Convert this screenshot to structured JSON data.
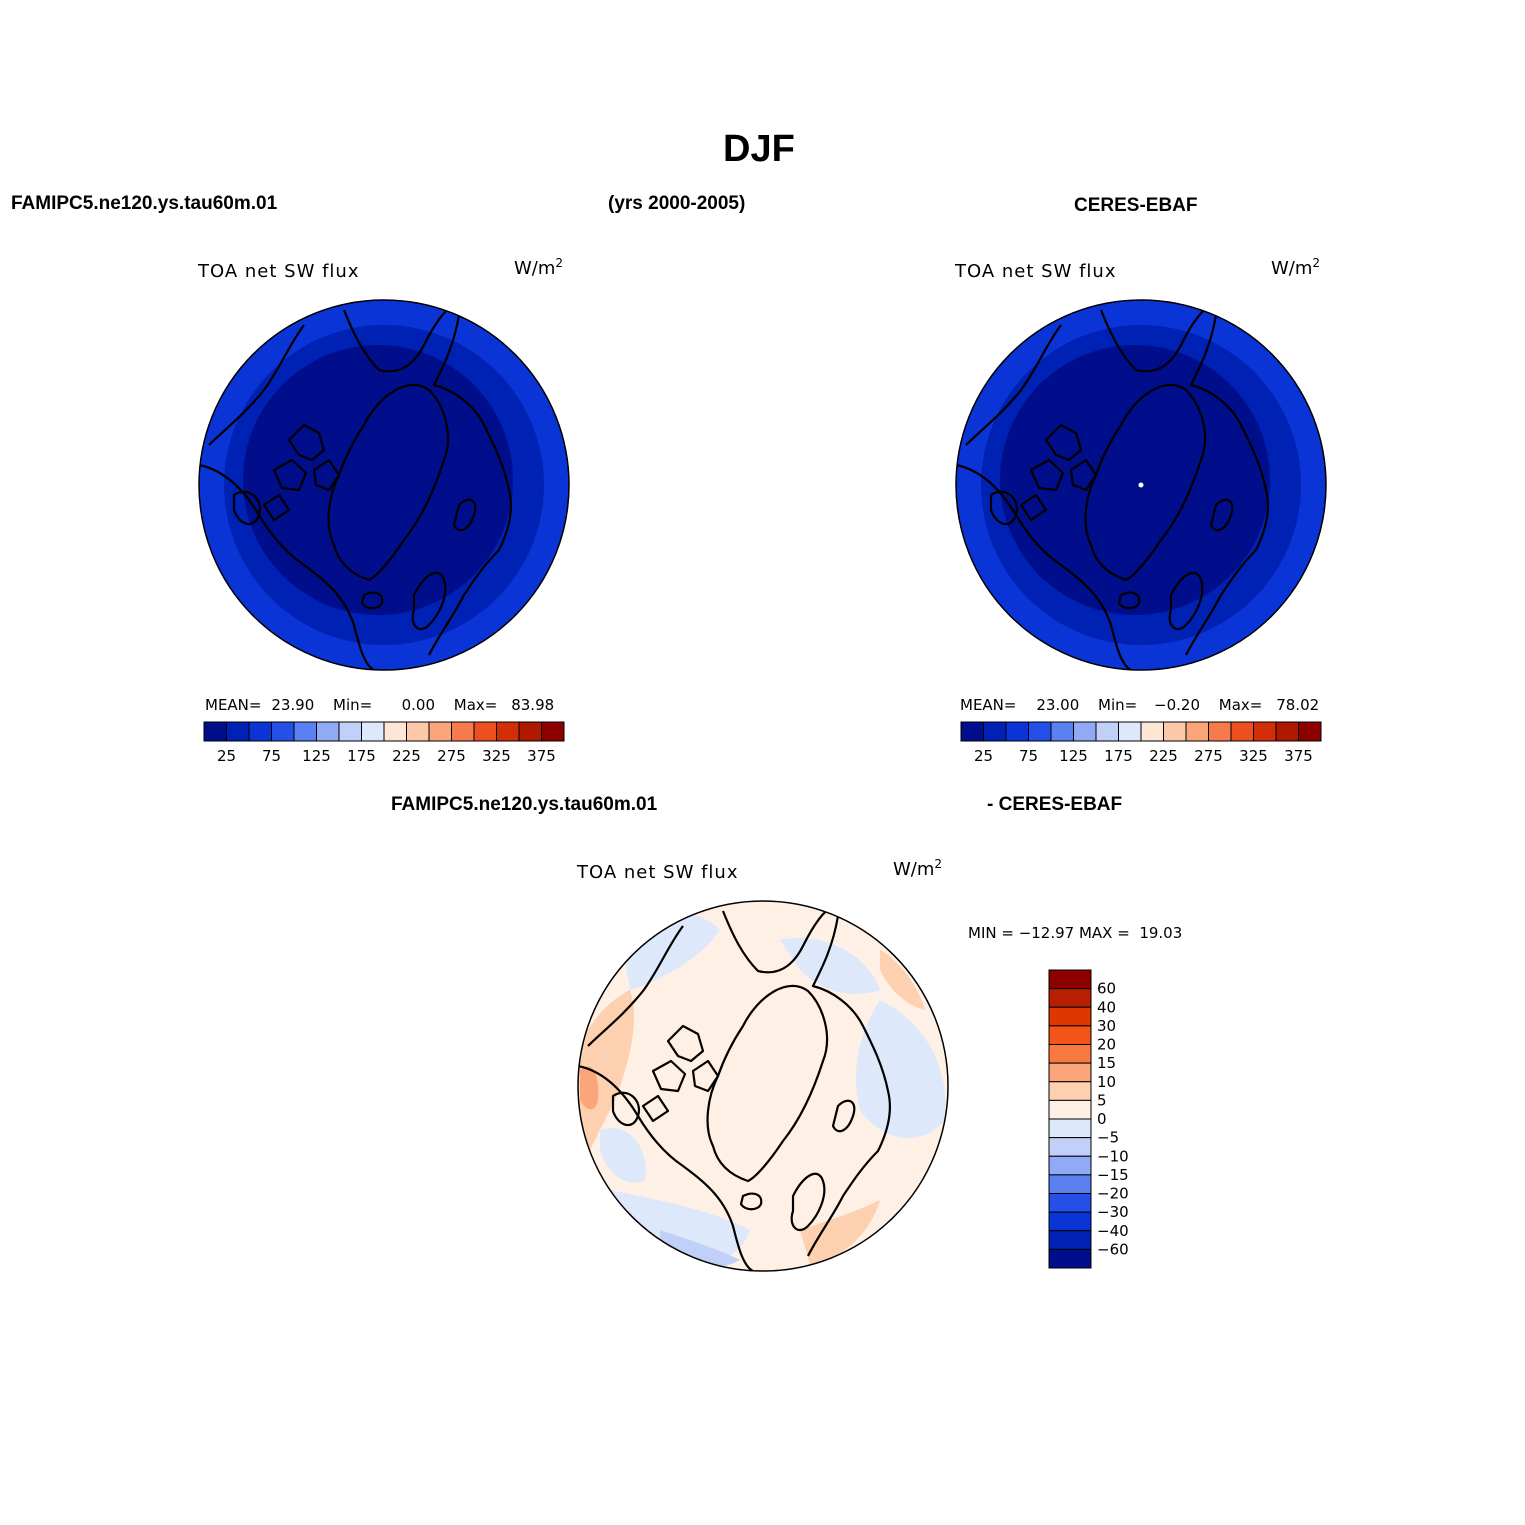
{
  "page": {
    "title": "DJF",
    "left_header": "FAMIPC5.ne120.ys.tau60m.01",
    "center_header": "(yrs 2000-2005)",
    "right_header": "CERES-EBAF",
    "diff_header_left": "FAMIPC5.ne120.ys.tau60m.01",
    "diff_header_right": "- CERES-EBAF"
  },
  "panels": [
    {
      "id": "model",
      "title": "TOA net SW flux",
      "units_base": "W/m",
      "units_sup": "2",
      "stats": {
        "mean_label": "MEAN=",
        "mean": "23.90",
        "min_label": "Min=",
        "min": "0.00",
        "max_label": "Max=",
        "max": "83.98"
      }
    },
    {
      "id": "obs",
      "title": "TOA net SW flux",
      "units_base": "W/m",
      "units_sup": "2",
      "stats": {
        "mean_label": "MEAN=",
        "mean": "23.00",
        "min_label": "Min=",
        "min": "−0.20",
        "max_label": "Max=",
        "max": "78.02"
      }
    },
    {
      "id": "diff",
      "title": "TOA net SW flux",
      "units_base": "W/m",
      "units_sup": "2",
      "stats": {
        "text": "MIN = −12.97 MAX =  19.03"
      }
    }
  ],
  "colorbar_abs": {
    "colors": [
      "#000e8c",
      "#0022b4",
      "#0a34d6",
      "#2450e8",
      "#5a80f2",
      "#90aaf6",
      "#c0d0f8",
      "#dde8fb",
      "#fde6d6",
      "#fdc8a8",
      "#fba57a",
      "#f67a4c",
      "#ec5020",
      "#d42e08",
      "#b01800",
      "#8c0000"
    ],
    "labels": [
      "25",
      "75",
      "125",
      "175",
      "225",
      "275",
      "325",
      "375"
    ]
  },
  "colorbar_diff": {
    "colors": [
      "#8c0000",
      "#b81e00",
      "#e03600",
      "#f45418",
      "#f87a40",
      "#fba67a",
      "#fdd0b0",
      "#fef0e4",
      "#dde8fb",
      "#c0d0f8",
      "#90aaf6",
      "#5a80f2",
      "#2450e8",
      "#0a34d6",
      "#0022b4",
      "#000e8c"
    ],
    "labels": [
      "60",
      "40",
      "30",
      "20",
      "15",
      "10",
      "5",
      "0",
      "−5",
      "−10",
      "−15",
      "−20",
      "−30",
      "−40",
      "−60"
    ]
  },
  "map_colors": {
    "abs_rings": [
      "#0a34d6",
      "#0022b4",
      "#000e8c"
    ],
    "diff_base": "#fef0e4",
    "diff_light_blue": "#dde8fb",
    "diff_mid_blue": "#c0d0f8",
    "diff_light_red": "#fdd0b0",
    "diff_mid_red": "#fba67a"
  }
}
